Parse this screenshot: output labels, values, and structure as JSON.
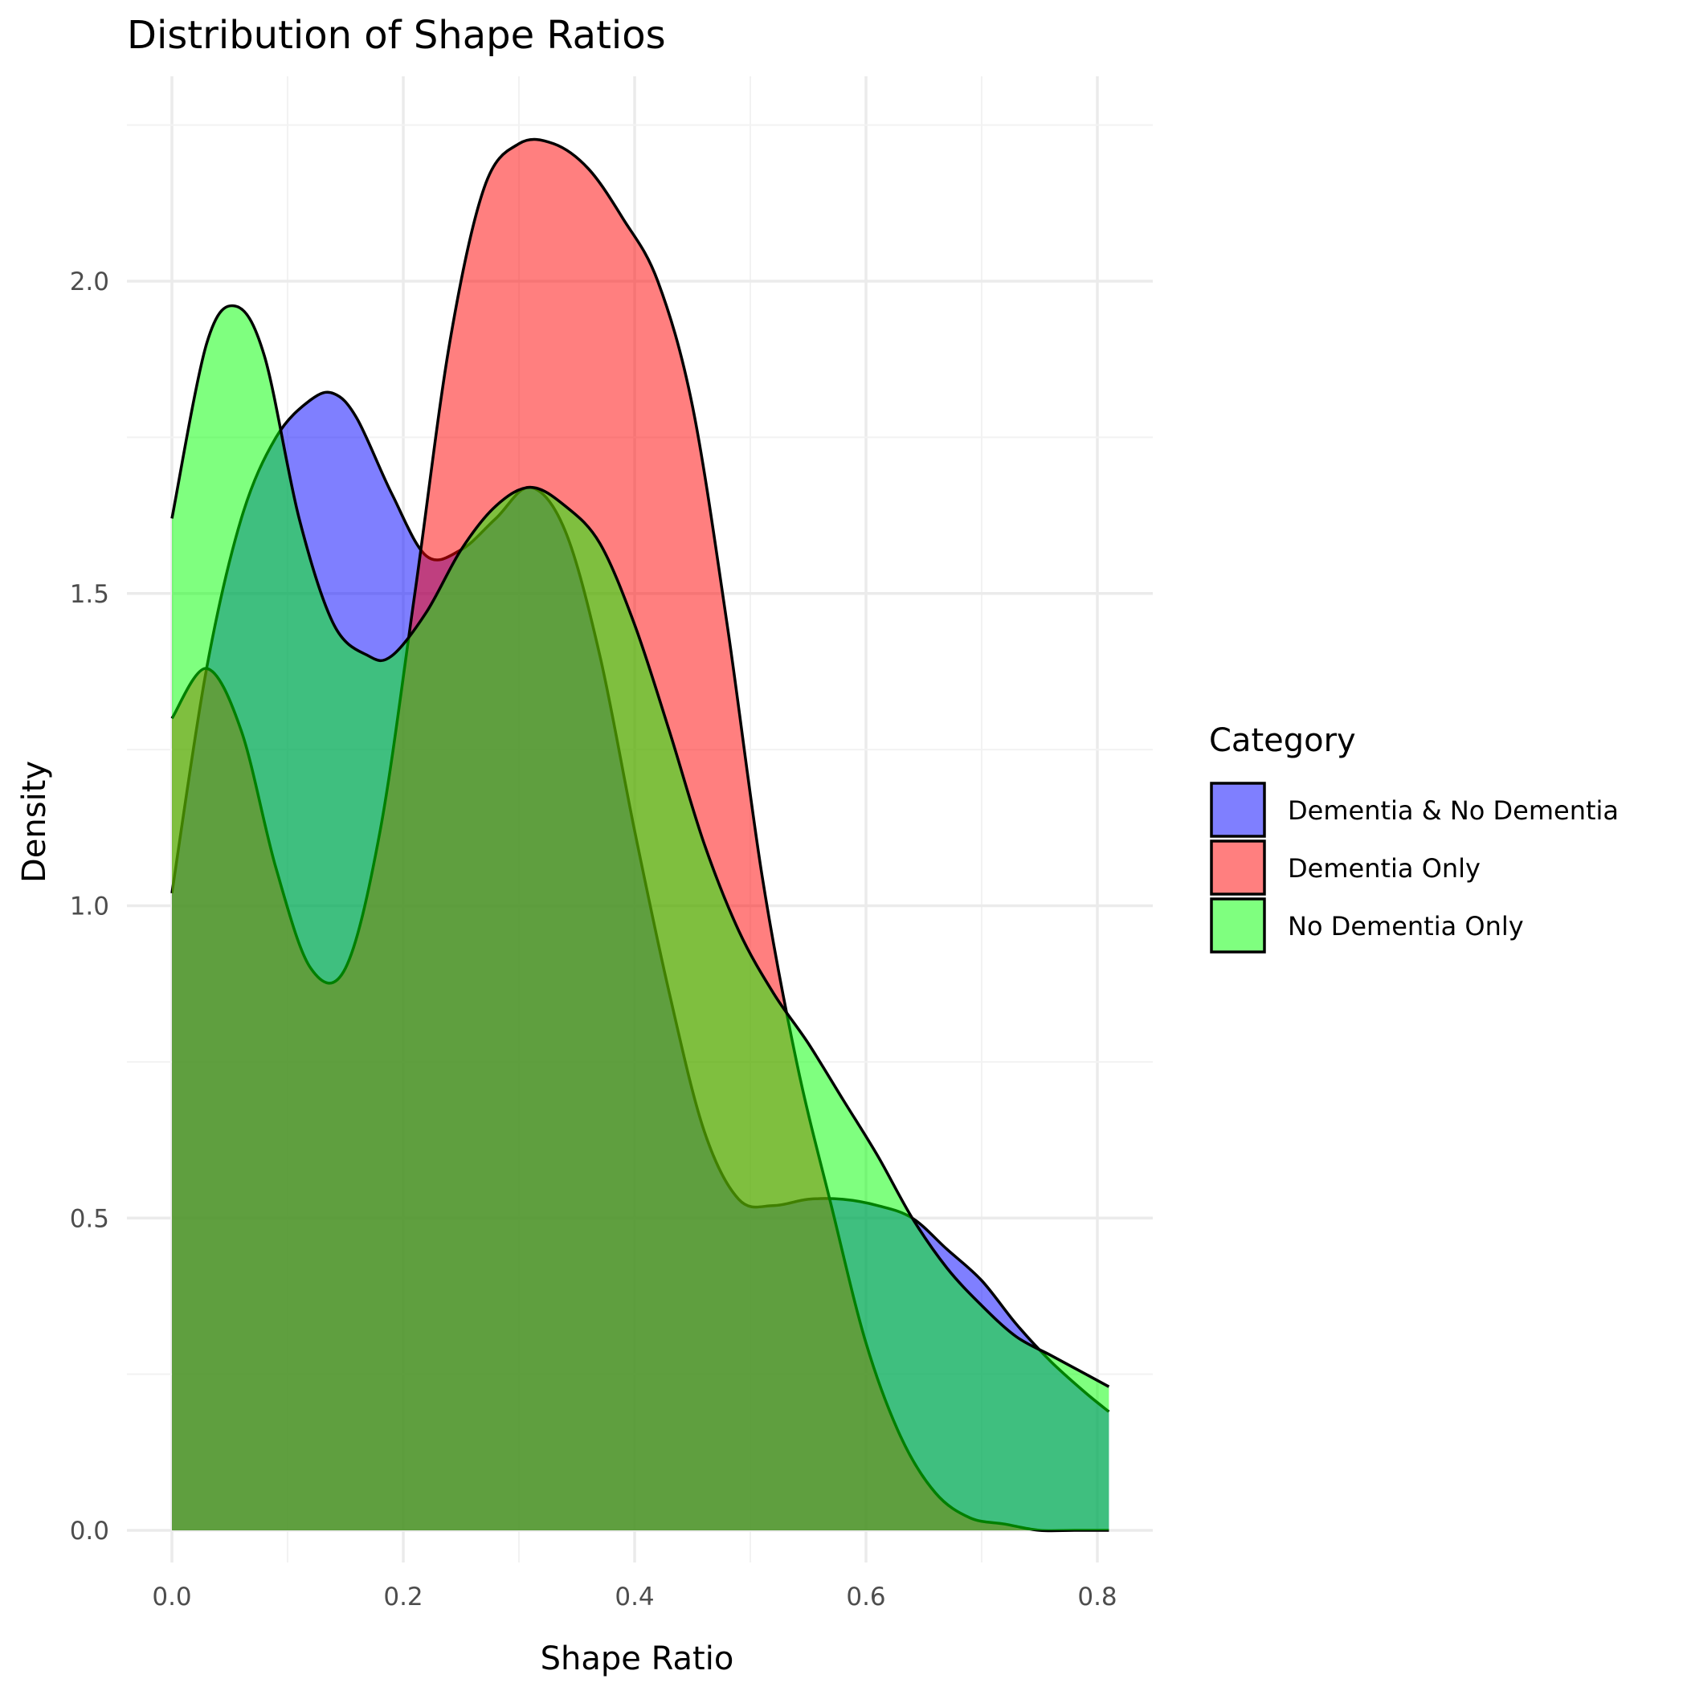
{
  "chart_data": {
    "type": "area",
    "title": "Distribution of Shape Ratios",
    "xlabel": "Shape Ratio",
    "ylabel": "Density",
    "xlim": [
      -0.04,
      0.85
    ],
    "ylim": [
      -0.1,
      2.3
    ],
    "x_ticks": [
      0.0,
      0.2,
      0.4,
      0.6,
      0.8
    ],
    "x_tick_labels": [
      "0.0",
      "0.2",
      "0.4",
      "0.6",
      "0.8"
    ],
    "y_ticks": [
      0.0,
      0.5,
      1.0,
      1.5,
      2.0
    ],
    "y_tick_labels": [
      "0.0",
      "0.5",
      "1.0",
      "1.5",
      "2.0"
    ],
    "grid": true,
    "legend": {
      "title": "Category",
      "position": "right"
    },
    "series": [
      {
        "name": "Dementia & No Dementia",
        "color": "#0000FF",
        "x": [
          0.0,
          0.03,
          0.06,
          0.09,
          0.12,
          0.14,
          0.16,
          0.19,
          0.22,
          0.25,
          0.28,
          0.31,
          0.34,
          0.37,
          0.4,
          0.43,
          0.46,
          0.49,
          0.52,
          0.55,
          0.58,
          0.61,
          0.64,
          0.67,
          0.7,
          0.73,
          0.76,
          0.79,
          0.81
        ],
        "values": [
          1.02,
          1.38,
          1.62,
          1.75,
          1.81,
          1.82,
          1.78,
          1.66,
          1.56,
          1.57,
          1.62,
          1.67,
          1.6,
          1.4,
          1.12,
          0.86,
          0.64,
          0.53,
          0.52,
          0.53,
          0.53,
          0.52,
          0.5,
          0.45,
          0.4,
          0.33,
          0.27,
          0.22,
          0.19
        ]
      },
      {
        "name": "Dementia Only",
        "color": "#FF0000",
        "x": [
          0.0,
          0.03,
          0.06,
          0.09,
          0.12,
          0.15,
          0.18,
          0.21,
          0.24,
          0.27,
          0.3,
          0.33,
          0.36,
          0.39,
          0.42,
          0.45,
          0.48,
          0.51,
          0.54,
          0.57,
          0.6,
          0.63,
          0.66,
          0.69,
          0.72,
          0.75,
          0.78,
          0.81
        ],
        "values": [
          1.3,
          1.38,
          1.28,
          1.06,
          0.9,
          0.9,
          1.12,
          1.5,
          1.9,
          2.15,
          2.22,
          2.22,
          2.18,
          2.1,
          2.0,
          1.8,
          1.45,
          1.05,
          0.75,
          0.52,
          0.3,
          0.15,
          0.06,
          0.02,
          0.01,
          0.0,
          0.0,
          0.0
        ]
      },
      {
        "name": "No Dementia Only",
        "color": "#00FF00",
        "x": [
          0.0,
          0.03,
          0.055,
          0.08,
          0.11,
          0.14,
          0.17,
          0.19,
          0.22,
          0.25,
          0.28,
          0.31,
          0.34,
          0.37,
          0.4,
          0.43,
          0.46,
          0.49,
          0.52,
          0.55,
          0.58,
          0.61,
          0.64,
          0.67,
          0.7,
          0.73,
          0.76,
          0.79,
          0.81
        ],
        "values": [
          1.62,
          1.9,
          1.96,
          1.88,
          1.62,
          1.45,
          1.4,
          1.4,
          1.47,
          1.57,
          1.64,
          1.67,
          1.64,
          1.58,
          1.45,
          1.28,
          1.1,
          0.96,
          0.86,
          0.78,
          0.69,
          0.6,
          0.5,
          0.42,
          0.36,
          0.31,
          0.28,
          0.25,
          0.23
        ]
      }
    ]
  }
}
